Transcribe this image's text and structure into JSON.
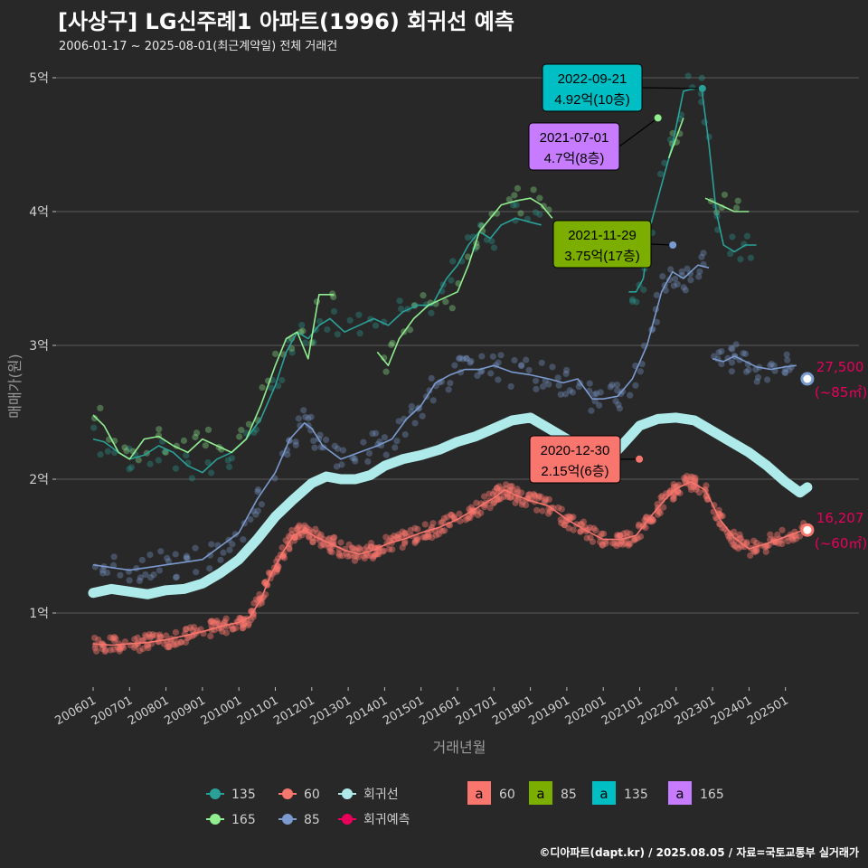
{
  "title": "[사상구] LG신주례1 아파트(1996) 회귀선 예측",
  "subtitle": "2006-01-17 ~ 2025-08-01(최근계약일) 전체 거래건",
  "credit": "©디아파트(dapt.kr) / 2025.08.05 / 자료=국토교통부 실거래가",
  "chart_data": {
    "type": "line",
    "xlabel": "거래년월",
    "ylabel": "매매가(원)",
    "x_ticks": [
      "200601",
      "200701",
      "200801",
      "200901",
      "201001",
      "201101",
      "201201",
      "201301",
      "201401",
      "201501",
      "201601",
      "201701",
      "201801",
      "201901",
      "202001",
      "202101",
      "202201",
      "202301",
      "202401",
      "202501"
    ],
    "y_ticks": [
      {
        "value": 1,
        "label": "1억"
      },
      {
        "value": 2,
        "label": "2억"
      },
      {
        "value": 3,
        "label": "3억"
      },
      {
        "value": 4,
        "label": "4억"
      },
      {
        "value": 5,
        "label": "5억"
      }
    ],
    "xlim": [
      2006.0,
      2025.8
    ],
    "ylim": [
      0.6,
      5.25
    ],
    "grid": true,
    "legend_position": "bottom",
    "colors": {
      "60": "#f8766d",
      "85": "#7b9acf",
      "135": "#2aa198",
      "165": "#90ee90",
      "trend": "#aeeaea",
      "forecast": "#e8005a",
      "label_60": "#f8766d",
      "label_85": "#7cae00",
      "label_135": "#00bfc4",
      "label_165": "#c77cff"
    },
    "series": [
      {
        "name": "60",
        "values": [
          [
            2006.0,
            0.77
          ],
          [
            2006.5,
            0.76
          ],
          [
            2007.0,
            0.77
          ],
          [
            2007.5,
            0.78
          ],
          [
            2008.0,
            0.8
          ],
          [
            2008.5,
            0.83
          ],
          [
            2009.0,
            0.86
          ],
          [
            2009.5,
            0.9
          ],
          [
            2010.0,
            0.93
          ],
          [
            2010.3,
            0.97
          ],
          [
            2010.6,
            1.1
          ],
          [
            2010.9,
            1.3
          ],
          [
            2011.2,
            1.45
          ],
          [
            2011.5,
            1.58
          ],
          [
            2011.8,
            1.62
          ],
          [
            2012.1,
            1.57
          ],
          [
            2012.5,
            1.52
          ],
          [
            2012.9,
            1.47
          ],
          [
            2013.3,
            1.44
          ],
          [
            2013.7,
            1.47
          ],
          [
            2014.1,
            1.52
          ],
          [
            2014.5,
            1.55
          ],
          [
            2015.0,
            1.6
          ],
          [
            2015.5,
            1.64
          ],
          [
            2016.0,
            1.7
          ],
          [
            2016.5,
            1.78
          ],
          [
            2017.0,
            1.86
          ],
          [
            2017.3,
            1.92
          ],
          [
            2017.6,
            1.88
          ],
          [
            2018.0,
            1.84
          ],
          [
            2018.5,
            1.8
          ],
          [
            2019.0,
            1.7
          ],
          [
            2019.5,
            1.62
          ],
          [
            2020.0,
            1.55
          ],
          [
            2020.5,
            1.55
          ],
          [
            2020.9,
            1.58
          ],
          [
            2021.3,
            1.72
          ],
          [
            2021.7,
            1.85
          ],
          [
            2022.0,
            1.93
          ],
          [
            2022.4,
            1.98
          ],
          [
            2022.8,
            1.92
          ],
          [
            2023.2,
            1.7
          ],
          [
            2023.6,
            1.56
          ],
          [
            2024.0,
            1.48
          ],
          [
            2024.5,
            1.52
          ],
          [
            2025.0,
            1.57
          ],
          [
            2025.5,
            1.62
          ]
        ]
      },
      {
        "name": "85",
        "values": [
          [
            2006.0,
            1.36
          ],
          [
            2006.5,
            1.34
          ],
          [
            2007.0,
            1.32
          ],
          [
            2007.5,
            1.34
          ],
          [
            2008.0,
            1.36
          ],
          [
            2008.5,
            1.38
          ],
          [
            2009.0,
            1.4
          ],
          [
            2009.5,
            1.5
          ],
          [
            2010.0,
            1.6
          ],
          [
            2010.5,
            1.85
          ],
          [
            2011.0,
            2.05
          ],
          [
            2011.4,
            2.3
          ],
          [
            2011.8,
            2.42
          ],
          [
            2012.0,
            2.38
          ],
          [
            2012.3,
            2.25
          ],
          [
            2012.8,
            2.15
          ],
          [
            2013.3,
            2.2
          ],
          [
            2013.8,
            2.25
          ],
          [
            2014.2,
            2.3
          ],
          [
            2014.6,
            2.45
          ],
          [
            2015.0,
            2.55
          ],
          [
            2015.4,
            2.72
          ],
          [
            2015.8,
            2.78
          ],
          [
            2016.2,
            2.82
          ],
          [
            2016.6,
            2.82
          ],
          [
            2017.0,
            2.85
          ],
          [
            2017.5,
            2.8
          ],
          [
            2018.0,
            2.78
          ],
          [
            2018.5,
            2.75
          ],
          [
            2018.9,
            2.72
          ],
          [
            2019.3,
            2.75
          ],
          [
            2019.7,
            2.6
          ],
          [
            2020.0,
            2.6
          ],
          [
            2020.4,
            2.62
          ],
          [
            2020.8,
            2.75
          ],
          [
            2021.2,
            3.0
          ],
          [
            2021.6,
            3.4
          ],
          [
            2021.9,
            3.55
          ],
          [
            2022.2,
            3.5
          ],
          [
            2022.6,
            3.6
          ],
          [
            2022.9,
            3.58
          ]
        ]
      },
      {
        "name": "85",
        "values": [
          [
            2023.0,
            2.9
          ],
          [
            2023.3,
            2.88
          ],
          [
            2023.6,
            2.92
          ],
          [
            2023.9,
            2.88
          ],
          [
            2024.2,
            2.84
          ],
          [
            2024.6,
            2.82
          ],
          [
            2025.0,
            2.84
          ],
          [
            2025.3,
            2.85
          ]
        ]
      },
      {
        "name": "135",
        "values": [
          [
            2006.0,
            2.3
          ],
          [
            2006.3,
            2.28
          ],
          [
            2006.7,
            2.2
          ],
          [
            2007.0,
            2.15
          ],
          [
            2007.4,
            2.18
          ],
          [
            2007.8,
            2.25
          ],
          [
            2008.2,
            2.2
          ],
          [
            2008.6,
            2.1
          ],
          [
            2009.0,
            2.05
          ],
          [
            2009.4,
            2.15
          ],
          [
            2009.8,
            2.2
          ],
          [
            2010.2,
            2.3
          ],
          [
            2010.6,
            2.45
          ],
          [
            2011.0,
            2.7
          ],
          [
            2011.3,
            2.95
          ],
          [
            2011.6,
            3.1
          ],
          [
            2011.9,
            3.05
          ],
          [
            2012.2,
            3.15
          ],
          [
            2012.5,
            3.2
          ],
          [
            2012.9,
            3.1
          ],
          [
            2013.3,
            3.15
          ],
          [
            2013.7,
            3.2
          ],
          [
            2014.1,
            3.15
          ],
          [
            2014.5,
            3.25
          ],
          [
            2014.9,
            3.3
          ],
          [
            2015.3,
            3.3
          ],
          [
            2015.7,
            3.5
          ],
          [
            2016.0,
            3.6
          ],
          [
            2016.3,
            3.75
          ],
          [
            2016.6,
            3.85
          ],
          [
            2016.9,
            3.8
          ],
          [
            2017.2,
            3.9
          ],
          [
            2017.6,
            3.95
          ],
          [
            2018.0,
            3.92
          ],
          [
            2018.3,
            3.9
          ]
        ]
      },
      {
        "name": "135",
        "values": [
          [
            2020.7,
            3.4
          ],
          [
            2020.9,
            3.4
          ],
          [
            2021.1,
            3.5
          ],
          [
            2021.3,
            3.9
          ],
          [
            2021.6,
            4.2
          ],
          [
            2021.9,
            4.5
          ],
          [
            2022.2,
            4.9
          ],
          [
            2022.5,
            4.92
          ],
          [
            2022.7,
            4.92
          ],
          [
            2022.9,
            4.5
          ],
          [
            2023.1,
            4.0
          ],
          [
            2023.3,
            3.75
          ],
          [
            2023.6,
            3.7
          ],
          [
            2023.9,
            3.75
          ],
          [
            2024.2,
            3.75
          ]
        ]
      },
      {
        "name": "165",
        "values": [
          [
            2006.0,
            2.48
          ],
          [
            2006.3,
            2.4
          ],
          [
            2006.7,
            2.2
          ],
          [
            2007.0,
            2.15
          ],
          [
            2007.4,
            2.3
          ],
          [
            2007.8,
            2.32
          ],
          [
            2008.2,
            2.25
          ],
          [
            2008.6,
            2.2
          ],
          [
            2009.0,
            2.3
          ],
          [
            2009.4,
            2.25
          ],
          [
            2009.8,
            2.2
          ],
          [
            2010.2,
            2.3
          ],
          [
            2010.6,
            2.55
          ],
          [
            2011.0,
            2.85
          ],
          [
            2011.3,
            3.05
          ],
          [
            2011.6,
            3.1
          ],
          [
            2011.9,
            2.9
          ],
          [
            2012.2,
            3.38
          ],
          [
            2012.6,
            3.38
          ]
        ]
      },
      {
        "name": "165",
        "values": [
          [
            2013.8,
            2.95
          ],
          [
            2014.1,
            2.85
          ],
          [
            2014.4,
            3.05
          ],
          [
            2014.8,
            3.2
          ],
          [
            2015.2,
            3.3
          ],
          [
            2015.6,
            3.35
          ],
          [
            2016.0,
            3.4
          ],
          [
            2016.3,
            3.6
          ],
          [
            2016.6,
            3.85
          ],
          [
            2016.9,
            3.95
          ],
          [
            2017.2,
            4.05
          ],
          [
            2017.6,
            4.08
          ],
          [
            2018.0,
            4.1
          ],
          [
            2018.3,
            4.05
          ],
          [
            2018.6,
            3.95
          ]
        ]
      },
      {
        "name": "165",
        "values": [
          [
            2021.8,
            4.4
          ],
          [
            2022.0,
            4.55
          ],
          [
            2022.2,
            4.7
          ]
        ]
      },
      {
        "name": "165",
        "values": [
          [
            2022.8,
            4.1
          ],
          [
            2023.2,
            4.05
          ],
          [
            2023.6,
            4.0
          ],
          [
            2024.0,
            4.0
          ]
        ]
      },
      {
        "name": "회귀선",
        "values": [
          [
            2006.0,
            1.15
          ],
          [
            2006.5,
            1.18
          ],
          [
            2007.0,
            1.16
          ],
          [
            2007.5,
            1.14
          ],
          [
            2008.0,
            1.17
          ],
          [
            2008.5,
            1.18
          ],
          [
            2009.0,
            1.22
          ],
          [
            2009.5,
            1.3
          ],
          [
            2010.0,
            1.4
          ],
          [
            2010.5,
            1.55
          ],
          [
            2011.0,
            1.72
          ],
          [
            2011.5,
            1.85
          ],
          [
            2012.0,
            1.97
          ],
          [
            2012.4,
            2.02
          ],
          [
            2012.8,
            2.0
          ],
          [
            2013.2,
            2.0
          ],
          [
            2013.6,
            2.03
          ],
          [
            2014.0,
            2.1
          ],
          [
            2014.5,
            2.15
          ],
          [
            2015.0,
            2.18
          ],
          [
            2015.5,
            2.22
          ],
          [
            2016.0,
            2.28
          ],
          [
            2016.5,
            2.32
          ],
          [
            2017.0,
            2.38
          ],
          [
            2017.5,
            2.44
          ],
          [
            2018.0,
            2.46
          ],
          [
            2018.5,
            2.38
          ],
          [
            2019.0,
            2.3
          ],
          [
            2019.5,
            2.2
          ],
          [
            2020.0,
            2.1
          ],
          [
            2020.5,
            2.25
          ],
          [
            2021.0,
            2.4
          ],
          [
            2021.5,
            2.45
          ],
          [
            2022.0,
            2.46
          ],
          [
            2022.5,
            2.44
          ],
          [
            2023.0,
            2.36
          ],
          [
            2023.5,
            2.28
          ],
          [
            2024.0,
            2.2
          ],
          [
            2024.5,
            2.1
          ],
          [
            2025.0,
            1.98
          ],
          [
            2025.4,
            1.9
          ],
          [
            2025.6,
            1.94
          ]
        ]
      }
    ],
    "forecast_points": [
      {
        "series": "85",
        "x": 2025.6,
        "y": 2.75,
        "label": "27,500",
        "area": "(~85㎡)"
      },
      {
        "series": "60",
        "x": 2025.6,
        "y": 1.62,
        "label": "16,207",
        "area": "(~60㎡)"
      }
    ],
    "annotations": [
      {
        "date": "2022-09-21",
        "price": "4.92억(10층)",
        "series": "135",
        "x": 2022.72,
        "y": 4.92
      },
      {
        "date": "2021-07-01",
        "price": "4.7억(8층)",
        "series": "165",
        "x": 2021.5,
        "y": 4.7
      },
      {
        "date": "2021-11-29",
        "price": "3.75억(17층)",
        "series": "85",
        "x": 2021.91,
        "y": 3.75
      },
      {
        "date": "2020-12-30",
        "price": "2.15억(6층)",
        "series": "60",
        "x": 2020.99,
        "y": 2.15
      }
    ],
    "legend": {
      "series_items": [
        "135",
        "60",
        "회귀선",
        "165",
        "85",
        "회귀예측"
      ],
      "label_items": [
        {
          "key": "a",
          "name": "60"
        },
        {
          "key": "a",
          "name": "85"
        },
        {
          "key": "a",
          "name": "135"
        },
        {
          "key": "a",
          "name": "165"
        }
      ]
    }
  }
}
